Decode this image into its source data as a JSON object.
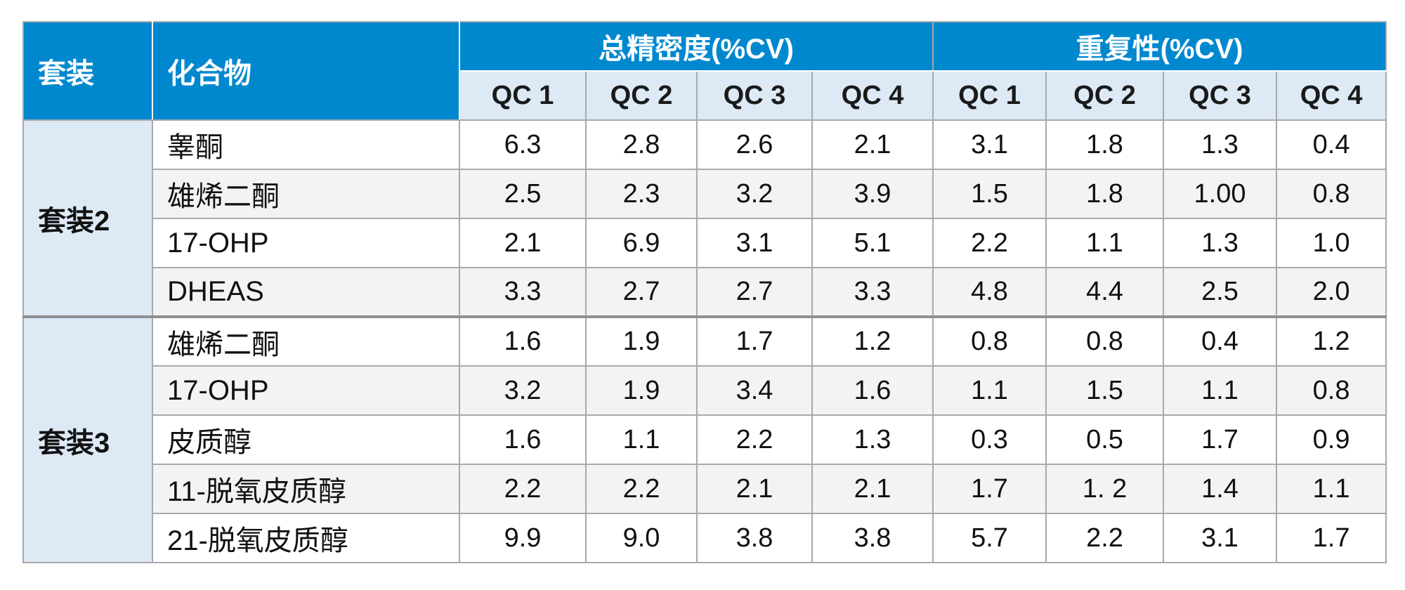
{
  "table": {
    "header": {
      "kit_label": "套装",
      "compound_label": "化合物",
      "groups": [
        "总精密度(%CV)",
        "重复性(%CV)"
      ],
      "qc_labels": [
        "QC 1",
        "QC 2",
        "QC 3",
        "QC 4",
        "QC 1",
        "QC 2",
        "QC 3",
        "QC 4"
      ]
    },
    "kits": [
      {
        "name": "套装2",
        "rows": [
          {
            "compound": "睾酮",
            "values": [
              "6.3",
              "2.8",
              "2.6",
              "2.1",
              "3.1",
              "1.8",
              "1.3",
              "0.4"
            ]
          },
          {
            "compound": "雄烯二酮",
            "values": [
              "2.5",
              "2.3",
              "3.2",
              "3.9",
              "1.5",
              "1.8",
              "1.00",
              "0.8"
            ]
          },
          {
            "compound": "17-OHP",
            "values": [
              "2.1",
              "6.9",
              "3.1",
              "5.1",
              "2.2",
              "1.1",
              "1.3",
              "1.0"
            ]
          },
          {
            "compound": "DHEAS",
            "values": [
              "3.3",
              "2.7",
              "2.7",
              "3.3",
              "4.8",
              "4.4",
              "2.5",
              "2.0"
            ]
          }
        ]
      },
      {
        "name": "套装3",
        "rows": [
          {
            "compound": "雄烯二酮",
            "values": [
              "1.6",
              "1.9",
              "1.7",
              "1.2",
              "0.8",
              "0.8",
              "0.4",
              "1.2"
            ]
          },
          {
            "compound": "17-OHP",
            "values": [
              "3.2",
              "1.9",
              "3.4",
              "1.6",
              "1.1",
              "1.5",
              "1.1",
              "0.8"
            ]
          },
          {
            "compound": "皮质醇",
            "values": [
              "1.6",
              "1.1",
              "2.2",
              "1.3",
              "0.3",
              "0.5",
              "1.7",
              "0.9"
            ]
          },
          {
            "compound": "11-脱氧皮质醇",
            "values": [
              "2.2",
              "2.2",
              "2.1",
              "2.1",
              "1.7",
              "1. 2",
              "1.4",
              "1.1"
            ]
          },
          {
            "compound": "21-脱氧皮质醇",
            "values": [
              "9.9",
              "9.0",
              "3.8",
              "3.8",
              "5.7",
              "2.2",
              "3.1",
              "1.7"
            ]
          }
        ]
      }
    ],
    "colors": {
      "header_blue": "#0088cf",
      "light_blue": "#dde9f5",
      "zebra_gray": "#f3f3f4",
      "border_gray": "#a7a9ac"
    }
  }
}
